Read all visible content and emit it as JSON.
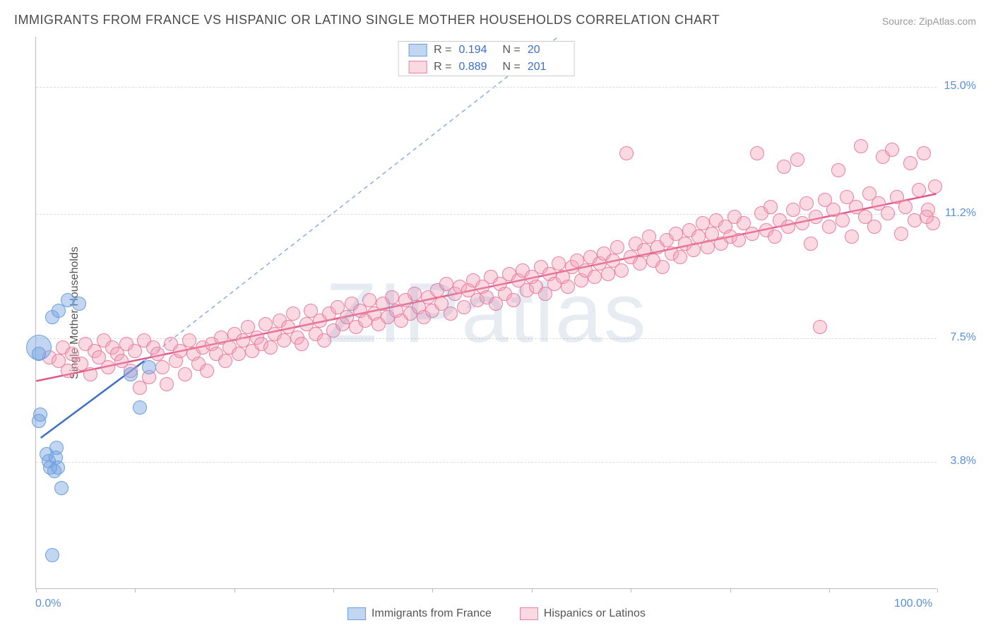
{
  "title": "IMMIGRANTS FROM FRANCE VS HISPANIC OR LATINO SINGLE MOTHER HOUSEHOLDS CORRELATION CHART",
  "source": "Source: ZipAtlas.com",
  "watermark": "ZIPatlas",
  "y_axis_label": "Single Mother Households",
  "chart": {
    "type": "scatter",
    "xlim": [
      0,
      100
    ],
    "ylim": [
      0,
      16.5
    ],
    "x_tick_positions": [
      0,
      11,
      22,
      33,
      44,
      55,
      66,
      77,
      88,
      100
    ],
    "y_gridlines": [
      {
        "value": 3.8,
        "label": "3.8%"
      },
      {
        "value": 7.5,
        "label": "7.5%"
      },
      {
        "value": 11.2,
        "label": "11.2%"
      },
      {
        "value": 15.0,
        "label": "15.0%"
      }
    ],
    "x_axis_labels": {
      "min": "0.0%",
      "max": "100.0%"
    },
    "background_color": "#ffffff",
    "grid_color": "#dcdcdc",
    "axis_color": "#bbbbbb",
    "tick_label_color": "#5b8fd6"
  },
  "series": {
    "blue": {
      "label": "Immigrants from France",
      "R": "0.194",
      "N": "20",
      "fill": "rgba(120,165,225,0.45)",
      "stroke": "#6a9fe0",
      "point_radius": 10,
      "line_color": "#3b6fc9",
      "line_width": 2.5,
      "trend": {
        "x1": 0.5,
        "y1": 4.5,
        "x2": 12,
        "y2": 6.8
      },
      "dashed_ext": {
        "x1": 12,
        "y1": 6.8,
        "x2": 58,
        "y2": 16.5
      },
      "points": [
        {
          "x": 0.3,
          "y": 7.2,
          "r": 18
        },
        {
          "x": 0.3,
          "y": 7.0
        },
        {
          "x": 0.5,
          "y": 5.2
        },
        {
          "x": 0.3,
          "y": 5.0
        },
        {
          "x": 1.2,
          "y": 4.0
        },
        {
          "x": 1.4,
          "y": 3.8
        },
        {
          "x": 1.6,
          "y": 3.6
        },
        {
          "x": 2.0,
          "y": 3.5
        },
        {
          "x": 2.2,
          "y": 3.9
        },
        {
          "x": 2.4,
          "y": 3.6
        },
        {
          "x": 2.8,
          "y": 3.0
        },
        {
          "x": 1.8,
          "y": 1.0
        },
        {
          "x": 1.8,
          "y": 8.1
        },
        {
          "x": 2.5,
          "y": 8.3
        },
        {
          "x": 3.5,
          "y": 8.6
        },
        {
          "x": 4.8,
          "y": 8.5
        },
        {
          "x": 10.5,
          "y": 6.4
        },
        {
          "x": 11.5,
          "y": 5.4
        },
        {
          "x": 12.5,
          "y": 6.6
        },
        {
          "x": 2.3,
          "y": 4.2
        }
      ]
    },
    "pink": {
      "label": "Hispanics or Latinos",
      "R": "0.889",
      "N": "201",
      "fill": "rgba(245,160,185,0.40)",
      "stroke": "#e97fa3",
      "point_radius": 10,
      "line_color": "#e05a89",
      "line_width": 2.5,
      "trend": {
        "x1": 0,
        "y1": 6.2,
        "x2": 100,
        "y2": 11.8
      },
      "points": [
        {
          "x": 1.5,
          "y": 6.9
        },
        {
          "x": 2.5,
          "y": 6.8
        },
        {
          "x": 3.0,
          "y": 7.2
        },
        {
          "x": 3.5,
          "y": 6.5
        },
        {
          "x": 4.0,
          "y": 7.0
        },
        {
          "x": 5.0,
          "y": 6.7
        },
        {
          "x": 5.5,
          "y": 7.3
        },
        {
          "x": 6.0,
          "y": 6.4
        },
        {
          "x": 6.5,
          "y": 7.1
        },
        {
          "x": 7.0,
          "y": 6.9
        },
        {
          "x": 7.5,
          "y": 7.4
        },
        {
          "x": 8.0,
          "y": 6.6
        },
        {
          "x": 8.5,
          "y": 7.2
        },
        {
          "x": 9.0,
          "y": 7.0
        },
        {
          "x": 9.5,
          "y": 6.8
        },
        {
          "x": 10.0,
          "y": 7.3
        },
        {
          "x": 10.5,
          "y": 6.5
        },
        {
          "x": 11.0,
          "y": 7.1
        },
        {
          "x": 11.5,
          "y": 6.0
        },
        {
          "x": 12.0,
          "y": 7.4
        },
        {
          "x": 12.5,
          "y": 6.3
        },
        {
          "x": 13.0,
          "y": 7.2
        },
        {
          "x": 13.5,
          "y": 7.0
        },
        {
          "x": 14.0,
          "y": 6.6
        },
        {
          "x": 14.5,
          "y": 6.1
        },
        {
          "x": 15.0,
          "y": 7.3
        },
        {
          "x": 15.5,
          "y": 6.8
        },
        {
          "x": 16.0,
          "y": 7.1
        },
        {
          "x": 16.5,
          "y": 6.4
        },
        {
          "x": 17.0,
          "y": 7.4
        },
        {
          "x": 17.5,
          "y": 7.0
        },
        {
          "x": 18.0,
          "y": 6.7
        },
        {
          "x": 18.5,
          "y": 7.2
        },
        {
          "x": 19.0,
          "y": 6.5
        },
        {
          "x": 19.5,
          "y": 7.3
        },
        {
          "x": 20.0,
          "y": 7.0
        },
        {
          "x": 20.5,
          "y": 7.5
        },
        {
          "x": 21.0,
          "y": 6.8
        },
        {
          "x": 21.5,
          "y": 7.2
        },
        {
          "x": 22.0,
          "y": 7.6
        },
        {
          "x": 22.5,
          "y": 7.0
        },
        {
          "x": 23.0,
          "y": 7.4
        },
        {
          "x": 23.5,
          "y": 7.8
        },
        {
          "x": 24.0,
          "y": 7.1
        },
        {
          "x": 24.5,
          "y": 7.5
        },
        {
          "x": 25.0,
          "y": 7.3
        },
        {
          "x": 25.5,
          "y": 7.9
        },
        {
          "x": 26.0,
          "y": 7.2
        },
        {
          "x": 26.5,
          "y": 7.6
        },
        {
          "x": 27.0,
          "y": 8.0
        },
        {
          "x": 27.5,
          "y": 7.4
        },
        {
          "x": 28.0,
          "y": 7.8
        },
        {
          "x": 28.5,
          "y": 8.2
        },
        {
          "x": 29.0,
          "y": 7.5
        },
        {
          "x": 29.5,
          "y": 7.3
        },
        {
          "x": 30.0,
          "y": 7.9
        },
        {
          "x": 30.5,
          "y": 8.3
        },
        {
          "x": 31.0,
          "y": 7.6
        },
        {
          "x": 31.5,
          "y": 8.0
        },
        {
          "x": 32.0,
          "y": 7.4
        },
        {
          "x": 32.5,
          "y": 8.2
        },
        {
          "x": 33.0,
          "y": 7.7
        },
        {
          "x": 33.5,
          "y": 8.4
        },
        {
          "x": 34.0,
          "y": 7.9
        },
        {
          "x": 34.5,
          "y": 8.1
        },
        {
          "x": 35.0,
          "y": 8.5
        },
        {
          "x": 35.5,
          "y": 7.8
        },
        {
          "x": 36.0,
          "y": 8.3
        },
        {
          "x": 36.5,
          "y": 8.0
        },
        {
          "x": 37.0,
          "y": 8.6
        },
        {
          "x": 37.5,
          "y": 8.2
        },
        {
          "x": 38.0,
          "y": 7.9
        },
        {
          "x": 38.5,
          "y": 8.5
        },
        {
          "x": 39.0,
          "y": 8.1
        },
        {
          "x": 39.5,
          "y": 8.7
        },
        {
          "x": 40.0,
          "y": 8.3
        },
        {
          "x": 40.5,
          "y": 8.0
        },
        {
          "x": 41.0,
          "y": 8.6
        },
        {
          "x": 41.5,
          "y": 8.2
        },
        {
          "x": 42.0,
          "y": 8.8
        },
        {
          "x": 42.5,
          "y": 8.4
        },
        {
          "x": 43.0,
          "y": 8.1
        },
        {
          "x": 43.5,
          "y": 8.7
        },
        {
          "x": 44.0,
          "y": 8.3
        },
        {
          "x": 44.5,
          "y": 8.9
        },
        {
          "x": 45.0,
          "y": 8.5
        },
        {
          "x": 45.5,
          "y": 9.1
        },
        {
          "x": 46.0,
          "y": 8.2
        },
        {
          "x": 46.5,
          "y": 8.8
        },
        {
          "x": 47.0,
          "y": 9.0
        },
        {
          "x": 47.5,
          "y": 8.4
        },
        {
          "x": 48.0,
          "y": 8.9
        },
        {
          "x": 48.5,
          "y": 9.2
        },
        {
          "x": 49.0,
          "y": 8.6
        },
        {
          "x": 49.5,
          "y": 9.0
        },
        {
          "x": 50.0,
          "y": 8.7
        },
        {
          "x": 50.5,
          "y": 9.3
        },
        {
          "x": 51.0,
          "y": 8.5
        },
        {
          "x": 51.5,
          "y": 9.1
        },
        {
          "x": 52.0,
          "y": 8.8
        },
        {
          "x": 52.5,
          "y": 9.4
        },
        {
          "x": 53.0,
          "y": 8.6
        },
        {
          "x": 53.5,
          "y": 9.2
        },
        {
          "x": 54.0,
          "y": 9.5
        },
        {
          "x": 54.5,
          "y": 8.9
        },
        {
          "x": 55.0,
          "y": 9.3
        },
        {
          "x": 55.5,
          "y": 9.0
        },
        {
          "x": 56.0,
          "y": 9.6
        },
        {
          "x": 56.5,
          "y": 8.8
        },
        {
          "x": 57.0,
          "y": 9.4
        },
        {
          "x": 57.5,
          "y": 9.1
        },
        {
          "x": 58.0,
          "y": 9.7
        },
        {
          "x": 58.5,
          "y": 9.3
        },
        {
          "x": 59.0,
          "y": 9.0
        },
        {
          "x": 59.5,
          "y": 9.6
        },
        {
          "x": 60.0,
          "y": 9.8
        },
        {
          "x": 60.5,
          "y": 9.2
        },
        {
          "x": 61.0,
          "y": 9.5
        },
        {
          "x": 61.5,
          "y": 9.9
        },
        {
          "x": 62.0,
          "y": 9.3
        },
        {
          "x": 62.5,
          "y": 9.7
        },
        {
          "x": 63.0,
          "y": 10.0
        },
        {
          "x": 63.5,
          "y": 9.4
        },
        {
          "x": 64.0,
          "y": 9.8
        },
        {
          "x": 64.5,
          "y": 10.2
        },
        {
          "x": 65.0,
          "y": 9.5
        },
        {
          "x": 65.5,
          "y": 13.0
        },
        {
          "x": 66.0,
          "y": 9.9
        },
        {
          "x": 66.5,
          "y": 10.3
        },
        {
          "x": 67.0,
          "y": 9.7
        },
        {
          "x": 67.5,
          "y": 10.1
        },
        {
          "x": 68.0,
          "y": 10.5
        },
        {
          "x": 68.5,
          "y": 9.8
        },
        {
          "x": 69.0,
          "y": 10.2
        },
        {
          "x": 69.5,
          "y": 9.6
        },
        {
          "x": 70.0,
          "y": 10.4
        },
        {
          "x": 70.5,
          "y": 10.0
        },
        {
          "x": 71.0,
          "y": 10.6
        },
        {
          "x": 71.5,
          "y": 9.9
        },
        {
          "x": 72.0,
          "y": 10.3
        },
        {
          "x": 72.5,
          "y": 10.7
        },
        {
          "x": 73.0,
          "y": 10.1
        },
        {
          "x": 73.5,
          "y": 10.5
        },
        {
          "x": 74.0,
          "y": 10.9
        },
        {
          "x": 74.5,
          "y": 10.2
        },
        {
          "x": 75.0,
          "y": 10.6
        },
        {
          "x": 75.5,
          "y": 11.0
        },
        {
          "x": 76.0,
          "y": 10.3
        },
        {
          "x": 76.5,
          "y": 10.8
        },
        {
          "x": 77.0,
          "y": 10.5
        },
        {
          "x": 77.5,
          "y": 11.1
        },
        {
          "x": 78.0,
          "y": 10.4
        },
        {
          "x": 78.5,
          "y": 10.9
        },
        {
          "x": 79.5,
          "y": 10.6
        },
        {
          "x": 80.0,
          "y": 13.0
        },
        {
          "x": 80.5,
          "y": 11.2
        },
        {
          "x": 81.0,
          "y": 10.7
        },
        {
          "x": 81.5,
          "y": 11.4
        },
        {
          "x": 82.0,
          "y": 10.5
        },
        {
          "x": 82.5,
          "y": 11.0
        },
        {
          "x": 83.0,
          "y": 12.6
        },
        {
          "x": 83.5,
          "y": 10.8
        },
        {
          "x": 84.0,
          "y": 11.3
        },
        {
          "x": 84.5,
          "y": 12.8
        },
        {
          "x": 85.0,
          "y": 10.9
        },
        {
          "x": 85.5,
          "y": 11.5
        },
        {
          "x": 86.0,
          "y": 10.3
        },
        {
          "x": 86.5,
          "y": 11.1
        },
        {
          "x": 87.0,
          "y": 7.8
        },
        {
          "x": 87.5,
          "y": 11.6
        },
        {
          "x": 88.0,
          "y": 10.8
        },
        {
          "x": 88.5,
          "y": 11.3
        },
        {
          "x": 89.0,
          "y": 12.5
        },
        {
          "x": 89.5,
          "y": 11.0
        },
        {
          "x": 90.0,
          "y": 11.7
        },
        {
          "x": 90.5,
          "y": 10.5
        },
        {
          "x": 91.0,
          "y": 11.4
        },
        {
          "x": 91.5,
          "y": 13.2
        },
        {
          "x": 92.0,
          "y": 11.1
        },
        {
          "x": 92.5,
          "y": 11.8
        },
        {
          "x": 93.0,
          "y": 10.8
        },
        {
          "x": 93.5,
          "y": 11.5
        },
        {
          "x": 94.0,
          "y": 12.9
        },
        {
          "x": 94.5,
          "y": 11.2
        },
        {
          "x": 95.0,
          "y": 13.1
        },
        {
          "x": 95.5,
          "y": 11.7
        },
        {
          "x": 96.0,
          "y": 10.6
        },
        {
          "x": 96.5,
          "y": 11.4
        },
        {
          "x": 97.0,
          "y": 12.7
        },
        {
          "x": 97.5,
          "y": 11.0
        },
        {
          "x": 98.0,
          "y": 11.9
        },
        {
          "x": 98.5,
          "y": 13.0
        },
        {
          "x": 99.0,
          "y": 11.3
        },
        {
          "x": 99.5,
          "y": 10.9
        },
        {
          "x": 99.8,
          "y": 12.0
        },
        {
          "x": 98.8,
          "y": 11.1
        }
      ]
    }
  }
}
